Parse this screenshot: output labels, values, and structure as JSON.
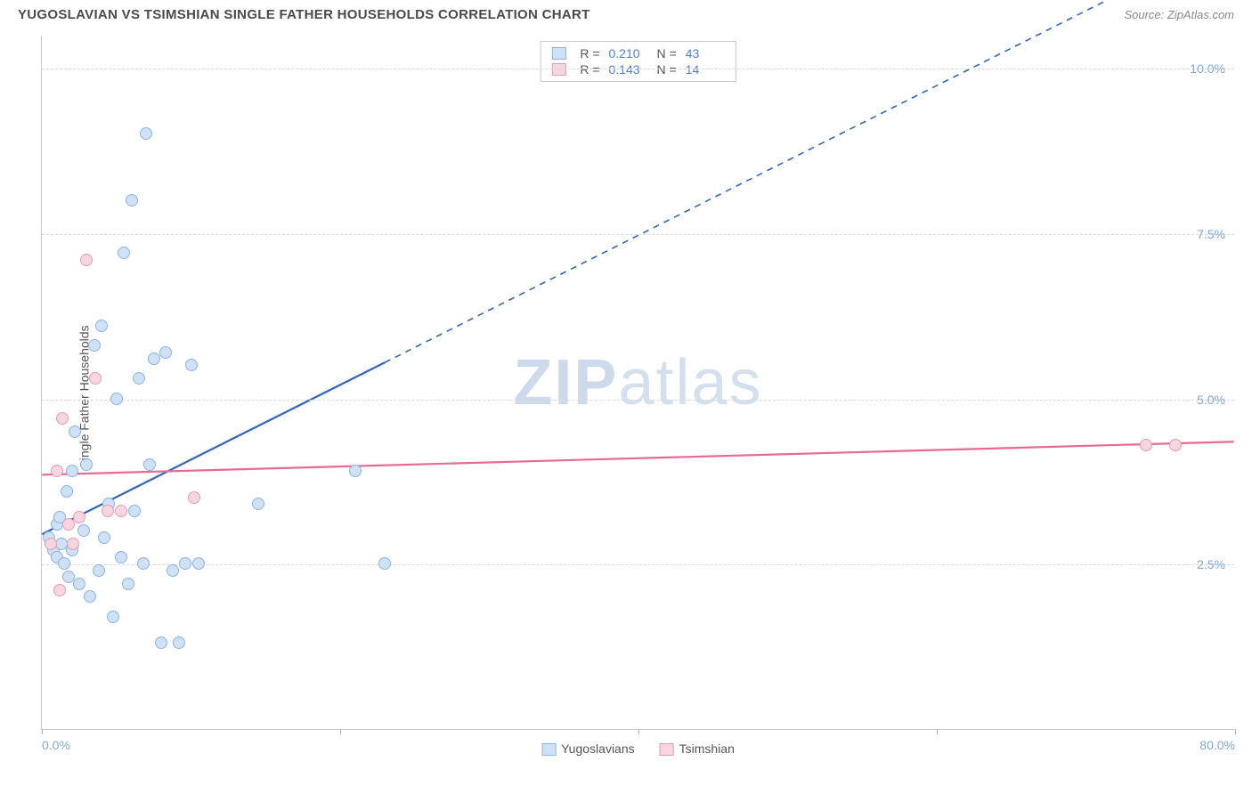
{
  "header": {
    "title": "YUGOSLAVIAN VS TSIMSHIAN SINGLE FATHER HOUSEHOLDS CORRELATION CHART",
    "source": "Source: ZipAtlas.com"
  },
  "chart": {
    "type": "scatter",
    "ylabel": "Single Father Households",
    "xlim": [
      0,
      80
    ],
    "ylim": [
      0,
      10.5
    ],
    "xtick_positions": [
      0,
      20,
      40,
      60,
      80
    ],
    "xtick_labels_shown": {
      "0": "0.0%",
      "80": "80.0%"
    },
    "ytick_positions": [
      2.5,
      5.0,
      7.5,
      10.0
    ],
    "ytick_labels": [
      "2.5%",
      "5.0%",
      "7.5%",
      "10.0%"
    ],
    "grid_color": "#d9d9d9",
    "axis_color": "#c8c8c8",
    "background_color": "#ffffff",
    "watermark": {
      "text_bold": "ZIP",
      "text_light": "atlas"
    },
    "series": [
      {
        "name": "Yugoslavians",
        "fill": "#cfe1f5",
        "stroke": "#8cb4e2",
        "trend_color": "#2f66c4",
        "R": "0.210",
        "N": "43",
        "trend_solid": {
          "x1": 0,
          "y1": 2.95,
          "x2": 23,
          "y2": 5.55
        },
        "trend_dashed": {
          "x1": 23,
          "y1": 5.55,
          "x2": 80,
          "y2": 12.0
        },
        "points": [
          [
            0.5,
            2.9
          ],
          [
            0.8,
            2.7
          ],
          [
            1.0,
            3.1
          ],
          [
            1.0,
            2.6
          ],
          [
            1.2,
            3.2
          ],
          [
            1.3,
            2.8
          ],
          [
            1.5,
            2.5
          ],
          [
            1.7,
            3.6
          ],
          [
            1.8,
            2.3
          ],
          [
            2.0,
            3.9
          ],
          [
            2.0,
            2.7
          ],
          [
            2.2,
            4.5
          ],
          [
            2.5,
            2.2
          ],
          [
            2.8,
            3.0
          ],
          [
            3.0,
            4.0
          ],
          [
            3.2,
            2.0
          ],
          [
            3.5,
            5.8
          ],
          [
            3.8,
            2.4
          ],
          [
            4.0,
            6.1
          ],
          [
            4.2,
            2.9
          ],
          [
            4.5,
            3.4
          ],
          [
            4.8,
            1.7
          ],
          [
            5.0,
            5.0
          ],
          [
            5.3,
            2.6
          ],
          [
            5.5,
            7.2
          ],
          [
            5.8,
            2.2
          ],
          [
            6.0,
            8.0
          ],
          [
            6.2,
            3.3
          ],
          [
            6.5,
            5.3
          ],
          [
            6.8,
            2.5
          ],
          [
            7.0,
            9.0
          ],
          [
            7.2,
            4.0
          ],
          [
            7.5,
            5.6
          ],
          [
            8.0,
            1.3
          ],
          [
            8.3,
            5.7
          ],
          [
            8.8,
            2.4
          ],
          [
            9.2,
            1.3
          ],
          [
            9.6,
            2.5
          ],
          [
            10.0,
            5.5
          ],
          [
            10.5,
            2.5
          ],
          [
            14.5,
            3.4
          ],
          [
            21.0,
            3.9
          ],
          [
            23.0,
            2.5
          ]
        ]
      },
      {
        "name": "Tsimshian",
        "fill": "#f7d6e0",
        "stroke": "#e89ab3",
        "trend_color": "#e76a94",
        "R": "0.143",
        "N": "14",
        "trend_solid": {
          "x1": 0,
          "y1": 3.85,
          "x2": 80,
          "y2": 4.35
        },
        "points": [
          [
            0.6,
            2.8
          ],
          [
            1.0,
            3.9
          ],
          [
            1.2,
            2.1
          ],
          [
            1.4,
            4.7
          ],
          [
            1.8,
            3.1
          ],
          [
            2.1,
            2.8
          ],
          [
            2.5,
            3.2
          ],
          [
            3.0,
            7.1
          ],
          [
            3.6,
            5.3
          ],
          [
            4.4,
            3.3
          ],
          [
            5.3,
            3.3
          ],
          [
            10.2,
            3.5
          ],
          [
            74.0,
            4.3
          ],
          [
            76.0,
            4.3
          ]
        ]
      }
    ],
    "legend_bottom": [
      {
        "label": "Yugoslavians",
        "fill": "#cfe1f5",
        "stroke": "#8cb4e2"
      },
      {
        "label": "Tsimshian",
        "fill": "#f7d6e0",
        "stroke": "#e89ab3"
      }
    ]
  }
}
